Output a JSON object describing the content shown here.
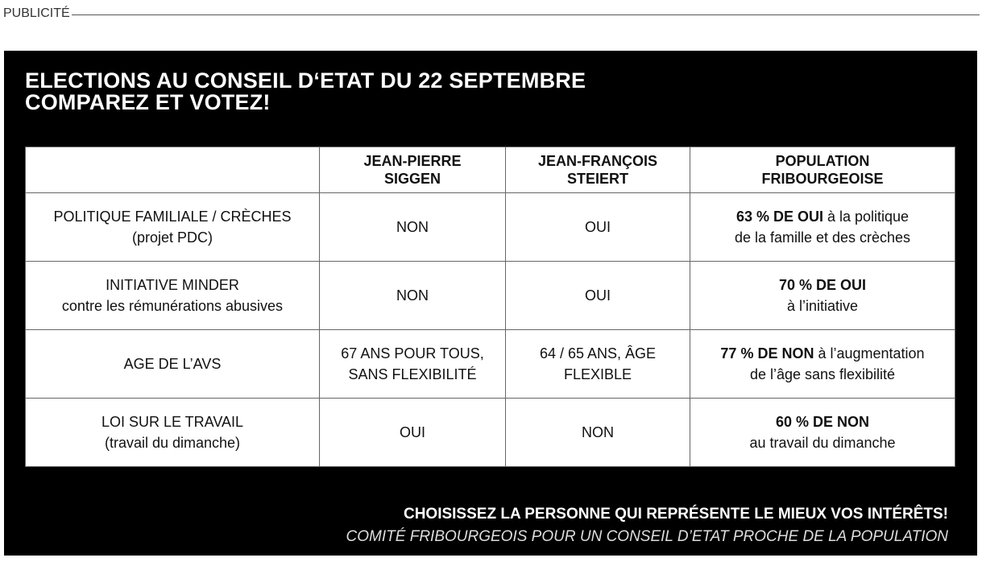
{
  "label": "PUBLICITÉ",
  "title": {
    "line1": "ELECTIONS AU CONSEIL D‘ETAT DU 22 SEPTEMBRE",
    "line2": "COMPAREZ ET VOTEZ!"
  },
  "table": {
    "headers": [
      {
        "l1": "",
        "l2": ""
      },
      {
        "l1": "JEAN-PIERRE",
        "l2": "SIGGEN"
      },
      {
        "l1": "JEAN-FRANÇOIS",
        "l2": "STEIERT"
      },
      {
        "l1": "POPULATION",
        "l2": "FRIBOURGEOISE"
      }
    ],
    "rows": [
      {
        "topic": {
          "l1": "POLITIQUE FAMILIALE / CRÈCHES",
          "l2": "(projet PDC)"
        },
        "siggen": {
          "l1": "NON",
          "l2": ""
        },
        "steiert": {
          "l1": "OUI",
          "l2": ""
        },
        "population": {
          "bold": "63 % DE OUI",
          "rest": " à la politique",
          "l2": "de la famille et des crèches"
        }
      },
      {
        "topic": {
          "l1": "INITIATIVE MINDER",
          "l2": "contre les rémunérations abusives"
        },
        "siggen": {
          "l1": "NON",
          "l2": ""
        },
        "steiert": {
          "l1": "OUI",
          "l2": ""
        },
        "population": {
          "bold": "70 % DE OUI",
          "rest": "",
          "l2": "à l’initiative"
        }
      },
      {
        "topic": {
          "l1": "AGE DE L’AVS",
          "l2": ""
        },
        "siggen": {
          "l1": "67 ANS POUR TOUS,",
          "l2": "SANS FLEXIBILITÉ"
        },
        "steiert": {
          "l1": "64 / 65 ANS, ÂGE",
          "l2": "FLEXIBLE"
        },
        "population": {
          "bold": "77 % DE NON",
          "rest": " à l’augmentation",
          "l2": "de l’âge sans flexibilité"
        }
      },
      {
        "topic": {
          "l1": "LOI SUR LE TRAVAIL",
          "l2": "(travail du dimanche)"
        },
        "siggen": {
          "l1": "OUI",
          "l2": ""
        },
        "steiert": {
          "l1": "NON",
          "l2": ""
        },
        "population": {
          "bold": "60 % DE NON",
          "rest": "",
          "l2": "au travail du dimanche"
        }
      }
    ]
  },
  "footer": {
    "line1": "CHOISISSEZ LA PERSONNE QUI REPRÉSENTE LE MIEUX VOS INTÉRÊTS!",
    "line2": "COMITÉ FRIBOURGEOIS POUR UN CONSEIL D’ETAT PROCHE DE LA POPULATION"
  }
}
